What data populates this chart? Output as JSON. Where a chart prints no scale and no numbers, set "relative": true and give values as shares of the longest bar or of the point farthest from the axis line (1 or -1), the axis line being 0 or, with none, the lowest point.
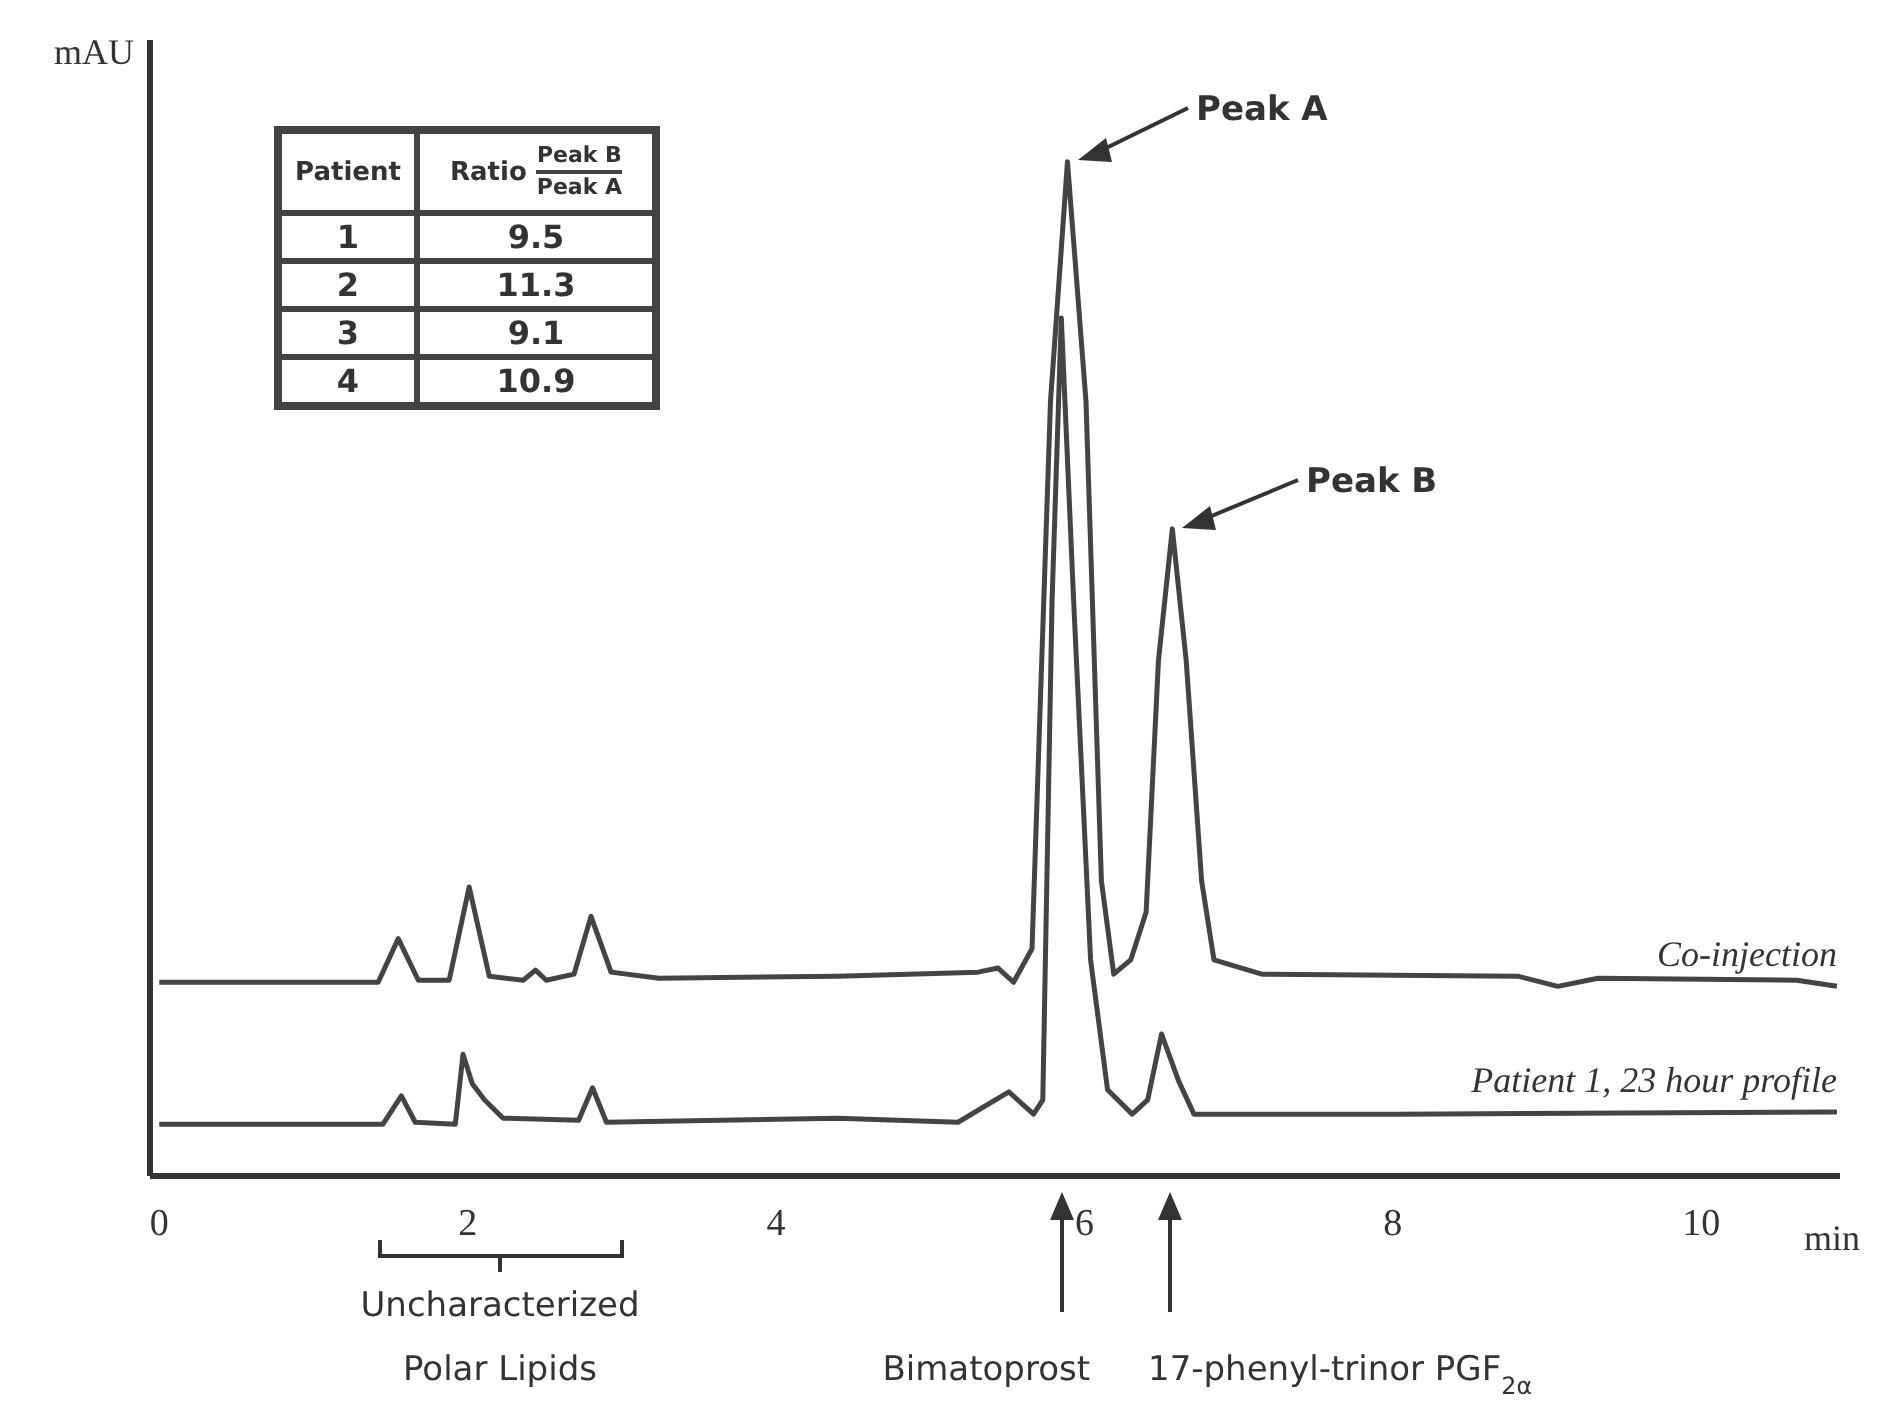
{
  "chart_data": {
    "type": "line",
    "relative": true,
    "xlabel": "min",
    "ylabel": "mAU",
    "xlim": [
      -0.06,
      10.9
    ],
    "xticks": [
      0,
      2,
      4,
      6,
      8,
      10
    ],
    "tick_labels": "x",
    "marker": "none",
    "line_style": "solid",
    "series": [
      {
        "name": "Co-injection",
        "color": "#444444",
        "x": [
          0,
          1.42,
          1.55,
          1.68,
          1.88,
          2.01,
          2.14,
          2.36,
          2.44,
          2.51,
          2.69,
          2.8,
          2.93,
          3.24,
          4.4,
          5.31,
          5.44,
          5.54,
          5.66,
          5.78,
          5.89,
          6.01,
          6.11,
          6.19,
          6.3,
          6.4,
          6.48,
          6.57,
          6.66,
          6.76,
          6.84,
          7.15,
          8.81,
          9.07,
          9.33,
          10.62,
          10.88
        ],
        "values": [
          0.191,
          0.191,
          0.234,
          0.193,
          0.193,
          0.285,
          0.197,
          0.193,
          0.203,
          0.193,
          0.199,
          0.256,
          0.201,
          0.195,
          0.197,
          0.201,
          0.205,
          0.191,
          0.224,
          0.764,
          1,
          0.764,
          0.291,
          0.199,
          0.213,
          0.26,
          0.508,
          0.638,
          0.508,
          0.291,
          0.213,
          0.199,
          0.197,
          0.187,
          0.195,
          0.193,
          0.187
        ]
      },
      {
        "name": "Patient 1, 23 hour profile",
        "color": "#444444",
        "x": [
          0,
          1.45,
          1.57,
          1.66,
          1.92,
          1.97,
          2.03,
          2.11,
          2.23,
          2.72,
          2.81,
          2.9,
          4.4,
          5.18,
          5.51,
          5.67,
          5.73,
          5.79,
          5.85,
          5.93,
          6.04,
          6.15,
          6.31,
          6.41,
          6.5,
          6.61,
          6.71,
          8.03,
          10.88
        ],
        "values": [
          0.051,
          0.051,
          0.079,
          0.053,
          0.051,
          0.12,
          0.091,
          0.075,
          0.057,
          0.055,
          0.087,
          0.053,
          0.057,
          0.053,
          0.083,
          0.061,
          0.075,
          0.567,
          0.846,
          0.567,
          0.213,
          0.085,
          0.061,
          0.075,
          0.14,
          0.094,
          0.061,
          0.061,
          0.063
        ]
      }
    ],
    "annotations": [
      "Peak A",
      "Peak B",
      "Bimatoprost",
      "17-phenyl-trinor PGF$_{2α}$",
      "Uncharacterized Polar Lipids",
      "Patient",
      "Ratio",
      "Peak B",
      "Peak A",
      "1",
      "9.5",
      "2",
      "11.3",
      "3",
      "9.1",
      "4",
      "10.9"
    ]
  }
}
